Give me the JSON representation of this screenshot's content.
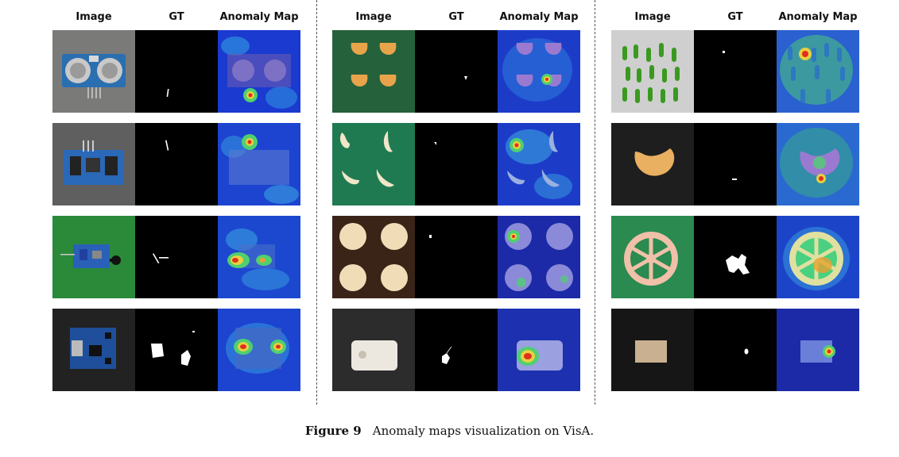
{
  "figure": {
    "column_headers": [
      "Image",
      "GT",
      "Anomaly Map"
    ],
    "caption_label": "Figure 9",
    "caption_text": "Anomaly maps visualization on VisA."
  }
}
